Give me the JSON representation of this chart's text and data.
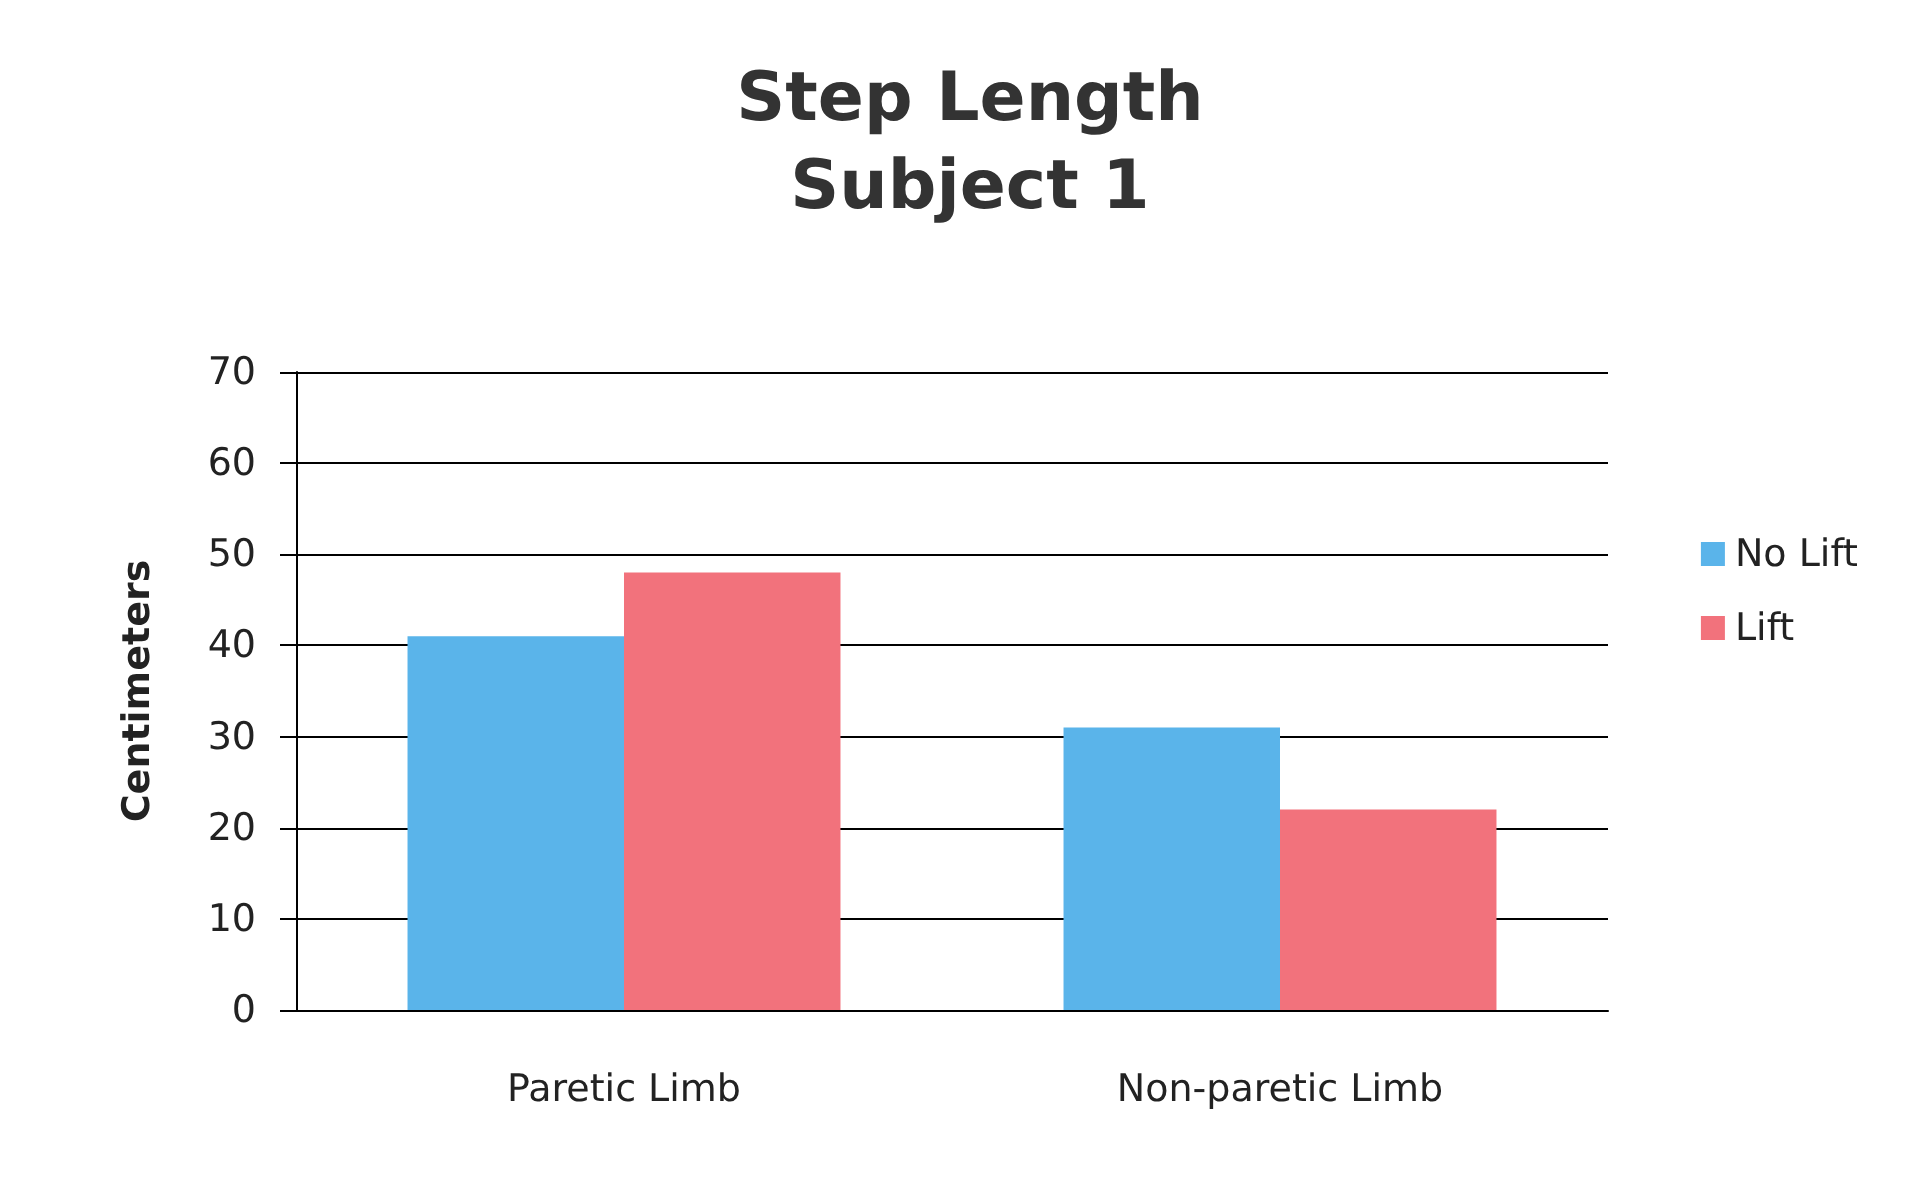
{
  "chart_data": {
    "type": "bar",
    "title": "Step Length\nSubject 1",
    "ylabel": "Centimeters",
    "categories": [
      "Paretic Limb",
      "Non-paretic Limb"
    ],
    "series": [
      {
        "name": "No Lift",
        "color": "#5ab4ea",
        "values": [
          41,
          31
        ]
      },
      {
        "name": "Lift",
        "color": "#f2727c",
        "values": [
          48,
          22
        ]
      }
    ],
    "ylim": [
      0,
      70
    ],
    "yticks": [
      0,
      10,
      20,
      30,
      40,
      50,
      60,
      70
    ],
    "grid": "y",
    "legend": "right"
  }
}
